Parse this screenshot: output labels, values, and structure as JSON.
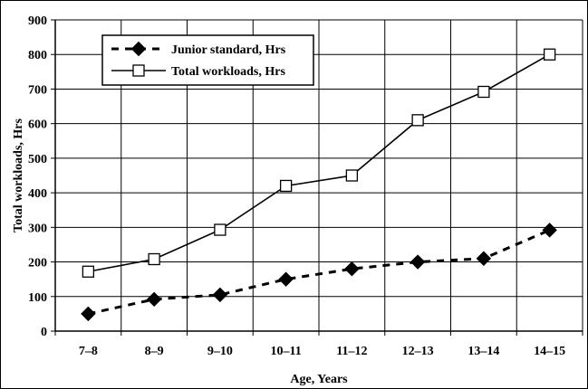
{
  "chart_data": {
    "type": "line",
    "categories": [
      "7–8",
      "8–9",
      "9–10",
      "10–11",
      "11–12",
      "12–13",
      "13–14",
      "14–15"
    ],
    "series": [
      {
        "name": "Junior standard, Hrs",
        "values": [
          50,
          92,
          105,
          150,
          180,
          200,
          210,
          292
        ],
        "line_style": "dashed",
        "marker": "diamond-filled",
        "color": "#000000"
      },
      {
        "name": "Total workloads, Hrs",
        "values": [
          172,
          208,
          293,
          420,
          450,
          610,
          692,
          800
        ],
        "line_style": "solid",
        "marker": "square-open",
        "color": "#000000"
      }
    ],
    "xlabel": "Age, Years",
    "ylabel": "Total workloads, Hrs",
    "ylim": [
      0,
      900
    ],
    "yticks": [
      "0",
      "100",
      "200",
      "300",
      "400",
      "500",
      "600",
      "700",
      "800",
      "900"
    ],
    "grid": true,
    "legend_position": "top-left"
  }
}
